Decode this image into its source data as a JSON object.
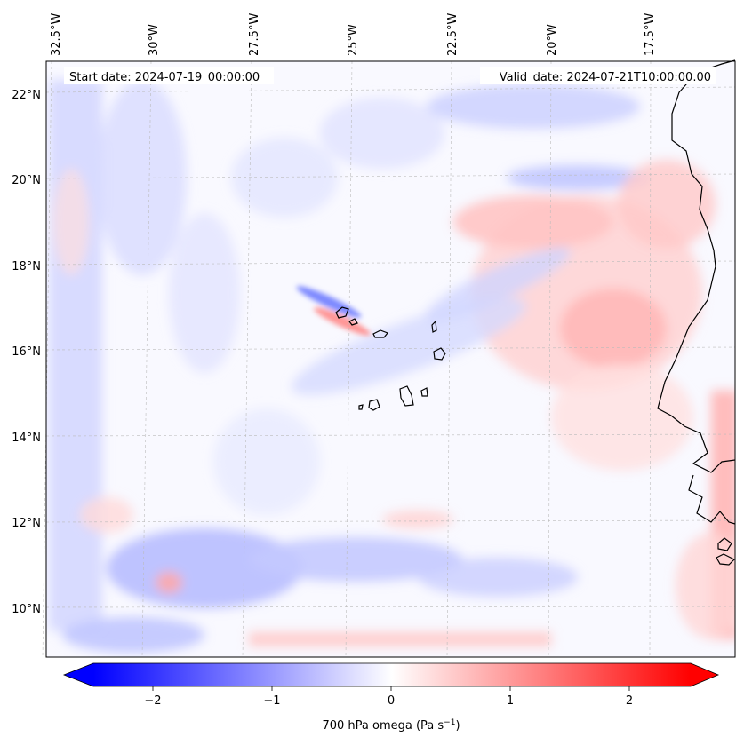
{
  "map": {
    "start_label": "Start date: 2024-07-19_00:00:00",
    "valid_label": "Valid_date: 2024-07-21T10:00:00.00",
    "lon_ticks": [
      "32.5°W",
      "30°W",
      "27.5°W",
      "25°W",
      "22.5°W",
      "20°W",
      "17.5°W"
    ],
    "lat_ticks": [
      "22°N",
      "20°N",
      "18°N",
      "16°N",
      "14°N",
      "12°N",
      "10°N"
    ],
    "extent": {
      "lon_min": -32.6,
      "lon_max": -15.3,
      "lat_min": 8.9,
      "lat_max": 22.8
    }
  },
  "colorbar": {
    "ticks": [
      "−2",
      "−1",
      "0",
      "1",
      "2"
    ],
    "range": [
      -2.5,
      2.5
    ],
    "label_prefix": "700 hPa omega (Pa s",
    "label_exp": "−1",
    "label_suffix": ")",
    "colors": {
      "min": "#0000ff",
      "mid": "#ffffff",
      "max": "#ff0000"
    }
  }
}
